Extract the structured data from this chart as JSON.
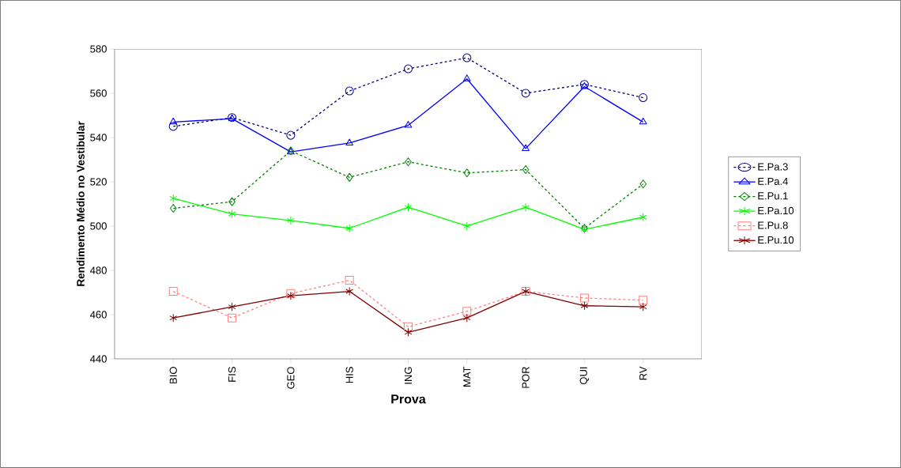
{
  "chart_data": {
    "type": "line",
    "xlabel": "Prova",
    "ylabel": "Rendimento Médio no Vestibular",
    "categories": [
      "BIO",
      "FIS",
      "GEO",
      "HIS",
      "ING",
      "MAT",
      "POR",
      "QUI",
      "RV"
    ],
    "ylim": [
      440,
      580
    ],
    "yticks": [
      440,
      460,
      480,
      500,
      520,
      540,
      560,
      580
    ],
    "grid": false,
    "legend": "right",
    "series": [
      {
        "name": "E.Pa.3",
        "color": "#000080",
        "marker": "circle",
        "line_style": "dashed",
        "values": [
          545,
          549,
          541,
          561,
          571,
          576,
          560,
          564,
          558
        ]
      },
      {
        "name": "E.Pa.4",
        "color": "#0000ff",
        "marker": "triangle",
        "line_style": "solid",
        "values": [
          547,
          548.5,
          533.5,
          537.5,
          545.5,
          566.5,
          535,
          563,
          547
        ]
      },
      {
        "name": "E.Pu.1",
        "color": "#008000",
        "marker": "diamond",
        "line_style": "dashed",
        "values": [
          508,
          511,
          534,
          522,
          529,
          524,
          525.5,
          499,
          519
        ]
      },
      {
        "name": "E.Pa.10",
        "color": "#00ff00",
        "marker": "cross",
        "line_style": "solid",
        "values": [
          512.5,
          505.5,
          502.5,
          499,
          508.5,
          500,
          508.5,
          498.5,
          504
        ]
      },
      {
        "name": "E.Pu.8",
        "color": "#ff8080",
        "marker": "square",
        "line_style": "dashed",
        "values": [
          470.5,
          458.5,
          469.5,
          475.5,
          454.5,
          461.5,
          470.5,
          467.5,
          466.5
        ]
      },
      {
        "name": "E.Pu.10",
        "color": "#800000",
        "marker": "cross",
        "line_style": "solid",
        "values": [
          458.5,
          463.5,
          468.5,
          470.5,
          452,
          458.5,
          470.5,
          464,
          463.5
        ]
      }
    ]
  }
}
